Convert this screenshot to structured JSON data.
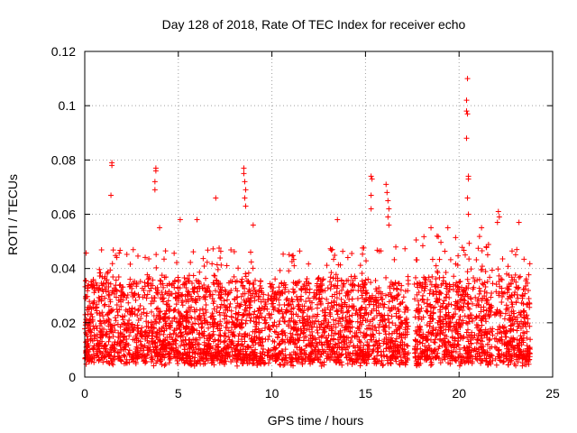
{
  "chart_data": {
    "type": "scatter",
    "title": "Day 128 of 2018, Rate Of TEC Index for receiver echo",
    "xlabel": "GPS time / hours",
    "ylabel": "ROTI / TECUs",
    "xlim": [
      0,
      25
    ],
    "ylim": [
      0,
      0.12
    ],
    "xticks": [
      0,
      5,
      10,
      15,
      20,
      25
    ],
    "xtick_labels": [
      "0",
      "5",
      "10",
      "15",
      "20",
      "25"
    ],
    "yticks": [
      0,
      0.02,
      0.04,
      0.06,
      0.08,
      0.1,
      0.12
    ],
    "ytick_labels": [
      "0",
      "0.02",
      "0.04",
      "0.06",
      "0.08",
      "0.1",
      "0.12"
    ],
    "grid": true,
    "marker": "plus",
    "color": "#ff0000",
    "legend": "none",
    "series": [
      {
        "points": [
          [
            1.45,
            0.079
          ],
          [
            1.45,
            0.078
          ],
          [
            1.4,
            0.067
          ],
          [
            3.8,
            0.077
          ],
          [
            3.8,
            0.076
          ],
          [
            3.75,
            0.072
          ],
          [
            3.75,
            0.069
          ],
          [
            7.0,
            0.066
          ],
          [
            8.5,
            0.077
          ],
          [
            8.5,
            0.075
          ],
          [
            8.55,
            0.072
          ],
          [
            8.6,
            0.069
          ],
          [
            8.55,
            0.066
          ],
          [
            8.6,
            0.063
          ],
          [
            15.3,
            0.074
          ],
          [
            15.35,
            0.073
          ],
          [
            15.3,
            0.067
          ],
          [
            15.3,
            0.062
          ],
          [
            16.1,
            0.071
          ],
          [
            16.15,
            0.068
          ],
          [
            16.2,
            0.065
          ],
          [
            16.25,
            0.062
          ],
          [
            16.2,
            0.059
          ],
          [
            16.25,
            0.056
          ],
          [
            20.45,
            0.11
          ],
          [
            20.4,
            0.102
          ],
          [
            20.4,
            0.098
          ],
          [
            20.45,
            0.097
          ],
          [
            20.4,
            0.088
          ],
          [
            20.5,
            0.074
          ],
          [
            20.5,
            0.073
          ],
          [
            20.45,
            0.066
          ],
          [
            20.5,
            0.06
          ],
          [
            22.1,
            0.061
          ],
          [
            22.15,
            0.059
          ],
          [
            22.05,
            0.057
          ],
          [
            4.0,
            0.055
          ],
          [
            5.1,
            0.058
          ],
          [
            6.0,
            0.058
          ],
          [
            9.0,
            0.056
          ],
          [
            13.5,
            0.058
          ],
          [
            18.5,
            0.055
          ],
          [
            19.4,
            0.055
          ],
          [
            21.2,
            0.055
          ],
          [
            23.2,
            0.057
          ]
        ]
      }
    ],
    "segments": [
      {
        "x_start": 0.0,
        "x_end": 17.3,
        "peak": 0.048
      },
      {
        "x_start": 17.6,
        "x_end": 21.8,
        "peak": 0.052
      },
      {
        "x_start": 21.9,
        "x_end": 23.8,
        "peak": 0.05
      }
    ]
  }
}
